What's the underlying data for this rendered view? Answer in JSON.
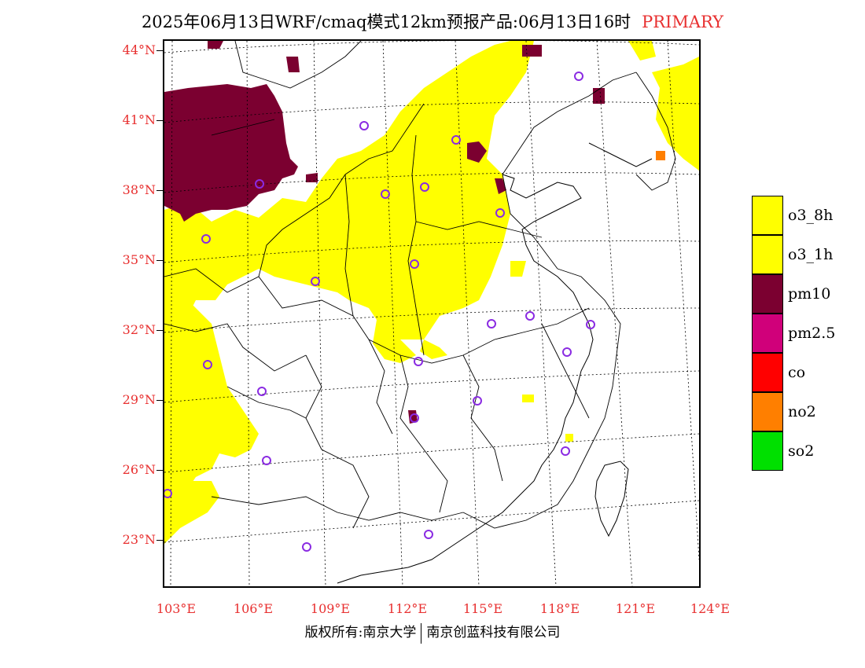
{
  "title": {
    "main": "2025年06月13日WRF/cmaq模式12km预报产品:06月13日16时",
    "tag": "PRIMARY"
  },
  "colors": {
    "tag": "#e83030",
    "axis_labels": "#e83030",
    "o3_8h": "#ffff00",
    "o3_1h": "#ffff00",
    "pm10": "#7b0030",
    "pm2_5": "#d0007a",
    "co": "#ff0000",
    "no2": "#ff7f00",
    "so2": "#00e000",
    "station_marker": "#8a2be2"
  },
  "axes": {
    "latitudes": [
      "44°N",
      "41°N",
      "38°N",
      "35°N",
      "32°N",
      "29°N",
      "26°N",
      "23°N"
    ],
    "longitudes": [
      "103°E",
      "106°E",
      "109°E",
      "112°E",
      "115°E",
      "118°E",
      "121°E",
      "124°E"
    ]
  },
  "legend": [
    {
      "label": "o3_8h",
      "color": "#ffff00"
    },
    {
      "label": "o3_1h",
      "color": "#ffff00"
    },
    {
      "label": "pm10",
      "color": "#7b0030"
    },
    {
      "label": "pm2.5",
      "color": "#d0007a"
    },
    {
      "label": "co",
      "color": "#ff0000"
    },
    {
      "label": "no2",
      "color": "#ff7f00"
    },
    {
      "label": "so2",
      "color": "#00e000"
    }
  ],
  "copyright": {
    "left": "版权所有:南京大学",
    "right": "南京创蓝科技有限公司"
  }
}
